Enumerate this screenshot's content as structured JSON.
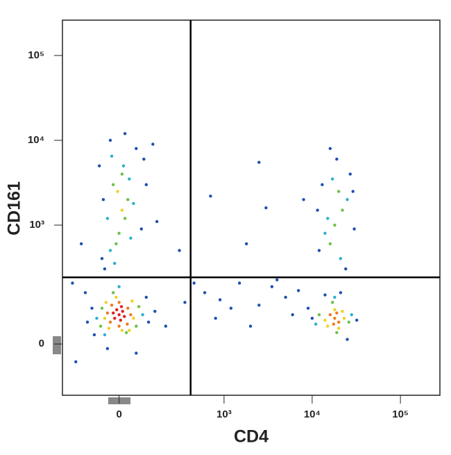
{
  "chart_data": {
    "type": "density",
    "x_label": "CD4",
    "y_label": "CD161",
    "xscale": "biexponential",
    "yscale": "biexponential",
    "xlim": [
      -270,
      280000
    ],
    "ylim": [
      -150,
      261000
    ],
    "xticks": [
      0,
      {
        "value": 1000,
        "label": "10³"
      },
      {
        "value": 10000,
        "label": "10⁴"
      },
      {
        "value": 100000,
        "label": "10⁵"
      }
    ],
    "yticks": [
      0,
      {
        "value": 1000,
        "label": "10³"
      },
      {
        "value": 10000,
        "label": "10⁴"
      },
      {
        "value": 100000,
        "label": "10⁵"
      }
    ],
    "quadrant_gate": {
      "x": 410,
      "y": 236
    },
    "series": [
      {
        "color": "#1f4fb0",
        "x": [
          -60,
          80,
          -55,
          100,
          60,
          -30,
          20,
          90,
          -70,
          130,
          -50,
          150,
          12000,
          30000,
          13000,
          27000,
          19000,
          16000,
          24000,
          11500,
          29000,
          -100,
          110,
          -90,
          100,
          -40,
          60,
          140,
          -120,
          200,
          -130,
          10000,
          32000,
          14000,
          25000,
          21000,
          9000,
          600,
          900,
          1500,
          2500,
          3500,
          5000,
          7000,
          800,
          2000,
          4000,
          1200,
          6000,
          350,
          450,
          700,
          3000,
          8000,
          1800,
          2500,
          -150,
          -200,
          300,
          -180
        ],
        "y": [
          400,
          900,
          2000,
          3000,
          8000,
          10000,
          12000,
          6000,
          5000,
          9000,
          300,
          1100,
          500,
          900,
          3000,
          4000,
          6000,
          8000,
          300,
          1500,
          2500,
          90,
          50,
          20,
          130,
          -10,
          -20,
          80,
          50,
          40,
          150,
          60,
          55,
          140,
          10,
          150,
          90,
          150,
          120,
          200,
          100,
          180,
          130,
          160,
          60,
          40,
          220,
          90,
          70,
          110,
          200,
          2200,
          1600,
          2000,
          600,
          5500,
          600,
          200,
          500,
          -40
        ]
      },
      {
        "color": "#2bb0c8",
        "x": [
          -30,
          40,
          50,
          -40,
          15,
          -25,
          35,
          -15,
          14000,
          25000,
          17000,
          21000,
          15000,
          -80,
          85,
          0,
          -50,
          11000,
          28000,
          18000
        ],
        "y": [
          500,
          700,
          1800,
          1200,
          5000,
          6500,
          3500,
          350,
          800,
          2000,
          3500,
          400,
          1200,
          60,
          70,
          180,
          20,
          45,
          70,
          130
        ]
      },
      {
        "color": "#6cc04a",
        "x": [
          -60,
          60,
          -20,
          25,
          70,
          -65,
          0,
          20,
          -20,
          30,
          10,
          -10,
          18000,
          20000,
          16000,
          22000,
          12000,
          26000,
          17000,
          19000
        ],
        "y": [
          90,
          40,
          150,
          25,
          95,
          40,
          800,
          1200,
          3000,
          2000,
          4000,
          600,
          1000,
          2500,
          600,
          1500,
          70,
          50,
          110,
          25
        ]
      },
      {
        "color": "#f0d020",
        "x": [
          -50,
          50,
          -45,
          45,
          -10,
          10,
          -35,
          35,
          14000,
          23000,
          18000,
          20000,
          15000,
          22000,
          10,
          -5
        ],
        "y": [
          60,
          60,
          110,
          115,
          130,
          30,
          35,
          30,
          55,
          60,
          85,
          35,
          40,
          80,
          1500,
          2500
        ]
      },
      {
        "color": "#f07820",
        "x": [
          -30,
          30,
          -25,
          28,
          0,
          0,
          -40,
          40,
          18000,
          20000,
          16000,
          19000,
          17500
        ],
        "y": [
          50,
          90,
          100,
          45,
          40,
          110,
          75,
          70,
          60,
          50,
          70,
          75,
          45
        ]
      },
      {
        "color": "#e02020",
        "x": [
          0,
          -15,
          12,
          5,
          -8,
          18,
          -20,
          8
        ],
        "y": [
          70,
          60,
          80,
          55,
          85,
          65,
          75,
          95
        ]
      }
    ]
  }
}
